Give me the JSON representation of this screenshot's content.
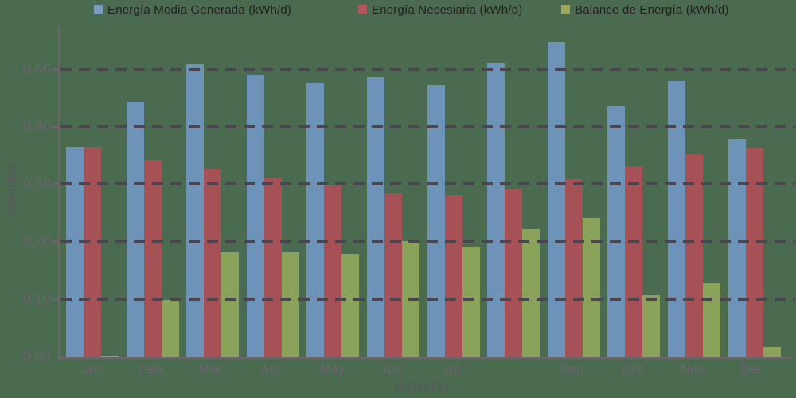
{
  "legend": [
    {
      "label": "Energía Media Generada (kWh/d)",
      "color": "#7b9cc0"
    },
    {
      "label": "Energía Necesiaria (kWh/d)",
      "color": "#b0585c"
    },
    {
      "label": "Balance de Energía (kWh/d)",
      "color": "#9fa660"
    }
  ],
  "chart_data": {
    "type": "bar",
    "title": "",
    "xlabel": "MONTH",
    "ylabel": "kWh/day",
    "categories": [
      "Jan.",
      "Feb.",
      "Mar.",
      "Apr.",
      "May",
      "Jun.",
      "Jul.",
      "",
      "Sep.",
      "Oct.",
      "Nov.",
      "Dec."
    ],
    "series": [
      {
        "name": "Energía Media Generada (kWh/d)",
        "color": "#6d93b8",
        "values": [
          0.364,
          0.443,
          0.507,
          0.49,
          0.476,
          0.486,
          0.471,
          0.51,
          0.547,
          0.435,
          0.479,
          0.378
        ]
      },
      {
        "name": "Energía Necesiaria (kWh/d)",
        "color": "#a55156",
        "values": [
          0.364,
          0.342,
          0.327,
          0.31,
          0.298,
          0.284,
          0.281,
          0.291,
          0.309,
          0.331,
          0.352,
          0.363
        ]
      },
      {
        "name": "Balance de Energía (kWh/d)",
        "color": "#8aa25a",
        "values": [
          0.002,
          0.098,
          0.181,
          0.181,
          0.178,
          0.201,
          0.191,
          0.221,
          0.24,
          0.106,
          0.127,
          0.016
        ]
      }
    ],
    "ylim": [
      0,
      0.55
    ],
    "ytick_labels": [
      "0,00",
      "0,10",
      "0,20",
      "0,30",
      "0,40",
      "0,50"
    ],
    "ytick_values": [
      0,
      0.1,
      0.2,
      0.3,
      0.4,
      0.5
    ],
    "grid": "dashed horizontal, drawn above bars",
    "legend_position": "top"
  },
  "colors": {
    "background": "#4a6b50",
    "axis_line": "#6b6468",
    "gridline": "#4a454e",
    "tick_label": "#6e6370",
    "month_label": "#6e6370",
    "axis_title": "#5c5460",
    "legend_text": "#251e21"
  }
}
